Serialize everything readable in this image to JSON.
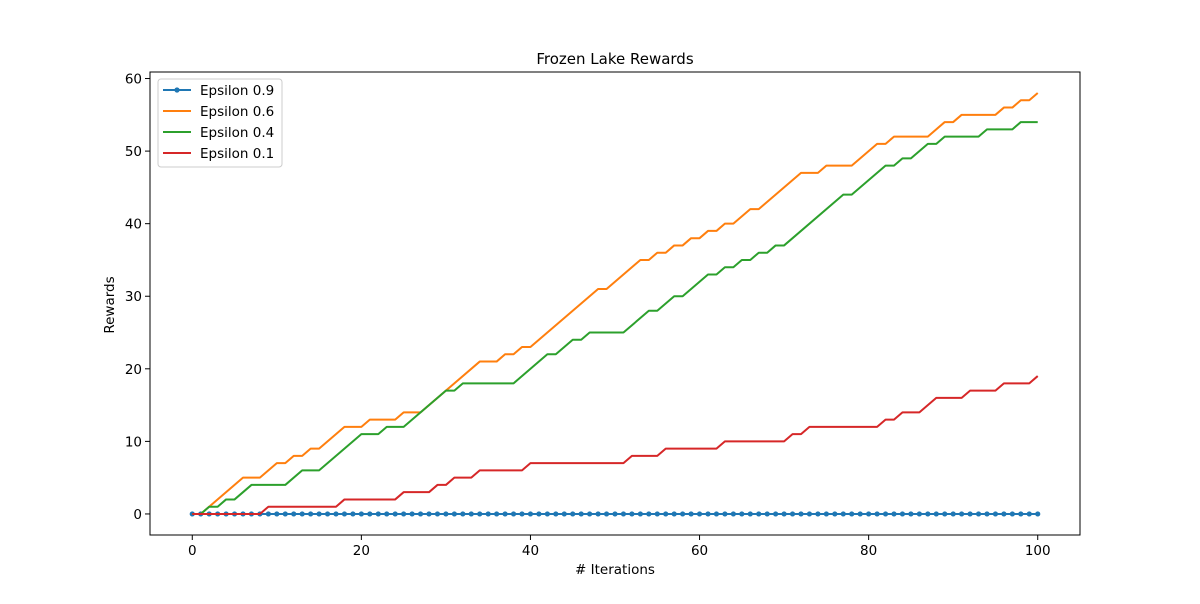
{
  "chart_data": {
    "type": "line",
    "title": "Frozen Lake  Rewards",
    "xlabel": "# Iterations",
    "ylabel": "Rewards",
    "xlim": [
      -5,
      105
    ],
    "ylim": [
      -2.9,
      60.9
    ],
    "xticks": [
      0,
      20,
      40,
      60,
      80,
      100
    ],
    "yticks": [
      0,
      10,
      20,
      30,
      40,
      50,
      60
    ],
    "grid": false,
    "legend_location": "upper left",
    "series": [
      {
        "name": "Epsilon 0.9",
        "color": "#1f77b4",
        "marker": "circle",
        "x_range": [
          0,
          100
        ],
        "points": [
          [
            0,
            0
          ],
          [
            100,
            0
          ]
        ]
      },
      {
        "name": "Epsilon 0.6",
        "color": "#ff7f0e",
        "marker": "none",
        "points": [
          [
            0,
            0
          ],
          [
            1,
            0
          ],
          [
            6,
            5
          ],
          [
            8,
            5
          ],
          [
            10,
            7
          ],
          [
            11,
            7
          ],
          [
            12,
            8
          ],
          [
            13,
            8
          ],
          [
            14,
            9
          ],
          [
            15,
            9
          ],
          [
            18,
            12
          ],
          [
            20,
            12
          ],
          [
            21,
            13
          ],
          [
            24,
            13
          ],
          [
            25,
            14
          ],
          [
            27,
            14
          ],
          [
            34,
            21
          ],
          [
            36,
            21
          ],
          [
            37,
            22
          ],
          [
            38,
            22
          ],
          [
            39,
            23
          ],
          [
            40,
            23
          ],
          [
            48,
            31
          ],
          [
            49,
            31
          ],
          [
            53,
            35
          ],
          [
            54,
            35
          ],
          [
            55,
            36
          ],
          [
            56,
            36
          ],
          [
            57,
            37
          ],
          [
            58,
            37
          ],
          [
            59,
            38
          ],
          [
            60,
            38
          ],
          [
            61,
            39
          ],
          [
            62,
            39
          ],
          [
            63,
            40
          ],
          [
            64,
            40
          ],
          [
            66,
            42
          ],
          [
            67,
            42
          ],
          [
            72,
            47
          ],
          [
            74,
            47
          ],
          [
            75,
            48
          ],
          [
            78,
            48
          ],
          [
            81,
            51
          ],
          [
            82,
            51
          ],
          [
            83,
            52
          ],
          [
            87,
            52
          ],
          [
            89,
            54
          ],
          [
            90,
            54
          ],
          [
            91,
            55
          ],
          [
            95,
            55
          ],
          [
            96,
            56
          ],
          [
            97,
            56
          ],
          [
            98,
            57
          ],
          [
            99,
            57
          ],
          [
            100,
            58
          ]
        ]
      },
      {
        "name": "Epsilon 0.4",
        "color": "#2ca02c",
        "marker": "none",
        "points": [
          [
            0,
            0
          ],
          [
            1,
            0
          ],
          [
            2,
            1
          ],
          [
            3,
            1
          ],
          [
            4,
            2
          ],
          [
            5,
            2
          ],
          [
            7,
            4
          ],
          [
            11,
            4
          ],
          [
            13,
            6
          ],
          [
            15,
            6
          ],
          [
            20,
            11
          ],
          [
            22,
            11
          ],
          [
            23,
            12
          ],
          [
            25,
            12
          ],
          [
            30,
            17
          ],
          [
            31,
            17
          ],
          [
            32,
            18
          ],
          [
            38,
            18
          ],
          [
            42,
            22
          ],
          [
            43,
            22
          ],
          [
            45,
            24
          ],
          [
            46,
            24
          ],
          [
            47,
            25
          ],
          [
            51,
            25
          ],
          [
            54,
            28
          ],
          [
            55,
            28
          ],
          [
            57,
            30
          ],
          [
            58,
            30
          ],
          [
            61,
            33
          ],
          [
            62,
            33
          ],
          [
            63,
            34
          ],
          [
            64,
            34
          ],
          [
            65,
            35
          ],
          [
            66,
            35
          ],
          [
            67,
            36
          ],
          [
            68,
            36
          ],
          [
            69,
            37
          ],
          [
            70,
            37
          ],
          [
            77,
            44
          ],
          [
            78,
            44
          ],
          [
            82,
            48
          ],
          [
            83,
            48
          ],
          [
            84,
            49
          ],
          [
            85,
            49
          ],
          [
            87,
            51
          ],
          [
            88,
            51
          ],
          [
            89,
            52
          ],
          [
            93,
            52
          ],
          [
            94,
            53
          ],
          [
            97,
            53
          ],
          [
            98,
            54
          ],
          [
            100,
            54
          ]
        ]
      },
      {
        "name": "Epsilon 0.1",
        "color": "#d62728",
        "marker": "none",
        "points": [
          [
            0,
            0
          ],
          [
            8,
            0
          ],
          [
            9,
            1
          ],
          [
            17,
            1
          ],
          [
            18,
            2
          ],
          [
            24,
            2
          ],
          [
            25,
            3
          ],
          [
            28,
            3
          ],
          [
            29,
            4
          ],
          [
            30,
            4
          ],
          [
            31,
            5
          ],
          [
            33,
            5
          ],
          [
            34,
            6
          ],
          [
            39,
            6
          ],
          [
            40,
            7
          ],
          [
            51,
            7
          ],
          [
            52,
            8
          ],
          [
            55,
            8
          ],
          [
            56,
            9
          ],
          [
            62,
            9
          ],
          [
            63,
            10
          ],
          [
            70,
            10
          ],
          [
            71,
            11
          ],
          [
            72,
            11
          ],
          [
            73,
            12
          ],
          [
            81,
            12
          ],
          [
            82,
            13
          ],
          [
            83,
            13
          ],
          [
            84,
            14
          ],
          [
            86,
            14
          ],
          [
            88,
            16
          ],
          [
            91,
            16
          ],
          [
            92,
            17
          ],
          [
            95,
            17
          ],
          [
            96,
            18
          ],
          [
            99,
            18
          ],
          [
            100,
            19
          ]
        ]
      }
    ]
  }
}
